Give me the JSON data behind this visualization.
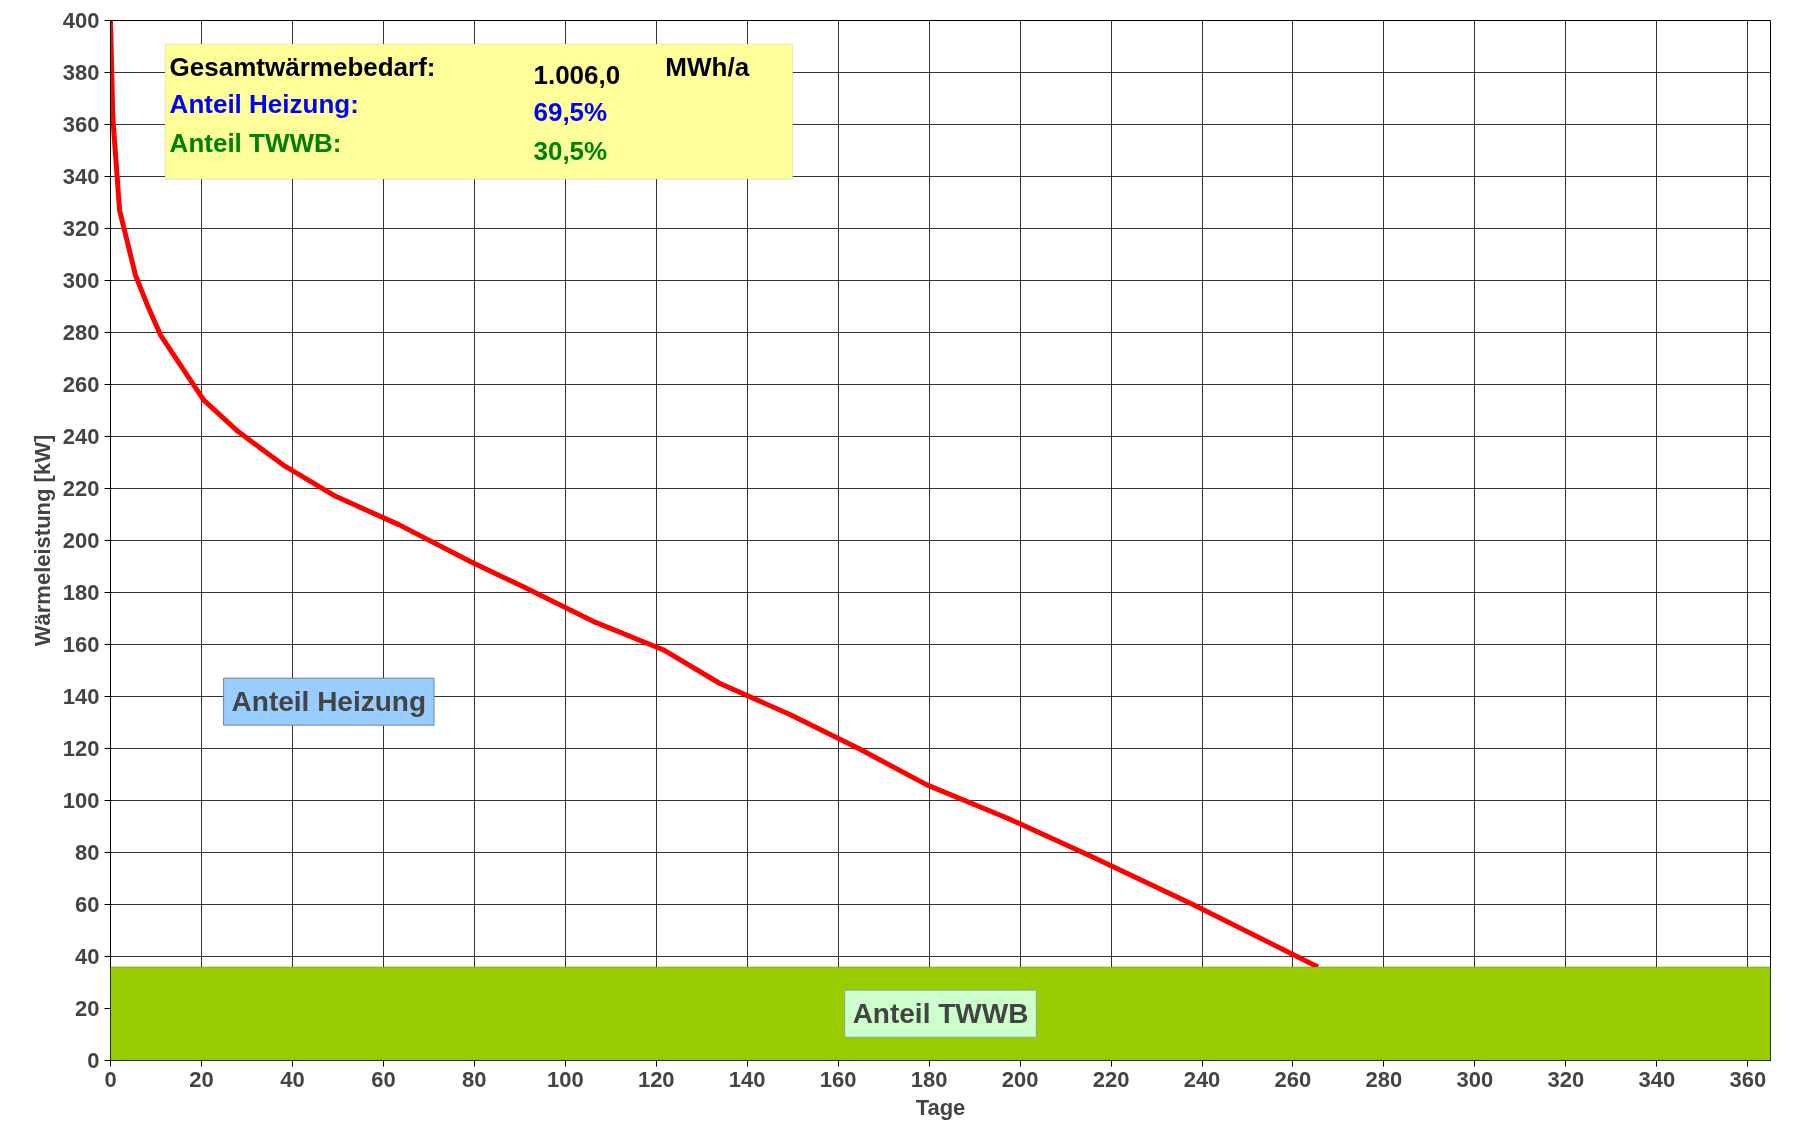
{
  "chart_data": {
    "type": "line",
    "ylabel": "Wärmeleistung [kW]",
    "xlabel": "Tage",
    "x": [
      0,
      0.5,
      2,
      5.5,
      8,
      11,
      20.5,
      28,
      38,
      49.5,
      63.5,
      79,
      91,
      106,
      121.5,
      134,
      149.5,
      164.5,
      179.5,
      197.5,
      215,
      238,
      265.5
    ],
    "series": [
      {
        "color": "#ff0000",
        "values": [
          400,
          363,
          327,
          302,
          291,
          279,
          254,
          242,
          229,
          217,
          206,
          192,
          182,
          169,
          158,
          145,
          133,
          120,
          106,
          93,
          79,
          60,
          36
        ]
      }
    ],
    "xlim": [
      0,
      365
    ],
    "ylim": [
      0,
      400
    ],
    "xticks": [
      0,
      20,
      40,
      60,
      80,
      100,
      120,
      140,
      160,
      180,
      200,
      220,
      240,
      260,
      280,
      300,
      320,
      340,
      360
    ],
    "yticks": [
      0,
      20,
      40,
      60,
      80,
      100,
      120,
      140,
      160,
      180,
      200,
      220,
      240,
      260,
      280,
      300,
      320,
      340,
      360,
      380,
      400
    ],
    "grid": true,
    "marker": "none",
    "line_style": "solid",
    "bands": [
      {
        "axis": "y",
        "from": 0,
        "to": 36,
        "label": "Anteil TWWB",
        "color": "#99cc00"
      }
    ],
    "annotations": [
      "Gesamtwärmebedarf:",
      "1.006,0",
      "MWh/a",
      "Anteil Heizung:",
      "69,5%",
      "Anteil TWWB:",
      "30,5%",
      "Anteil Heizung"
    ]
  }
}
